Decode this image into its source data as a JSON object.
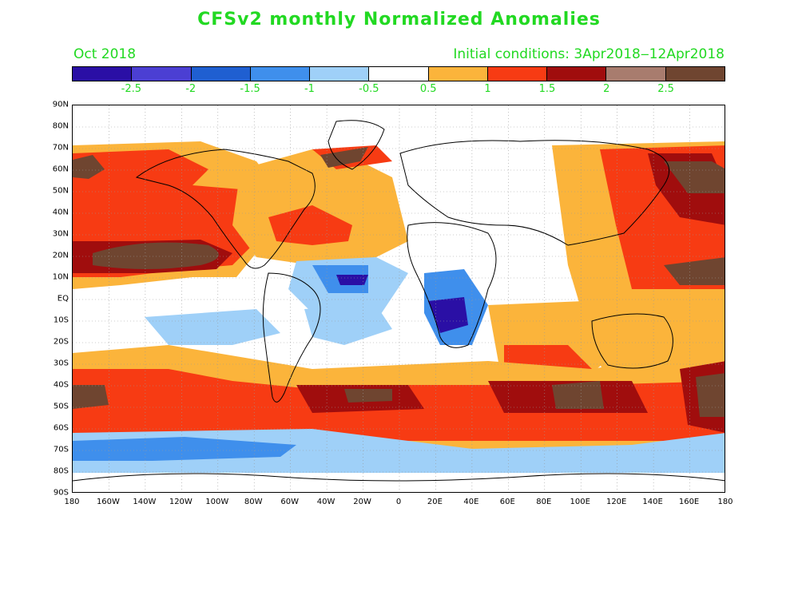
{
  "title": "CFSv2 monthly Normalized Anomalies",
  "subtitle_left": "Oct 2018",
  "subtitle_right": "Initial conditions: 3Apr2018‒12Apr2018",
  "colorbar": {
    "colors": [
      "#2a0fa5",
      "#4b3fd3",
      "#1f5fd1",
      "#3f8fec",
      "#9fd0f8",
      "#ffffff",
      "#fbb43b",
      "#f73b13",
      "#a00d0d",
      "#a87c6e",
      "#6f4530"
    ],
    "labels": [
      "-2.5",
      "-2",
      "-1.5",
      "-1",
      "-0.5",
      "0.5",
      "1",
      "1.5",
      "2",
      "2.5"
    ]
  },
  "axes": {
    "lat_labels": [
      "90N",
      "80N",
      "70N",
      "60N",
      "50N",
      "40N",
      "30N",
      "20N",
      "10N",
      "EQ",
      "10S",
      "20S",
      "30S",
      "40S",
      "50S",
      "60S",
      "70S",
      "80S",
      "90S"
    ],
    "lon_labels": [
      "180",
      "160W",
      "140W",
      "120W",
      "100W",
      "80W",
      "60W",
      "40W",
      "20W",
      "0",
      "20E",
      "40E",
      "60E",
      "80E",
      "100E",
      "120E",
      "140E",
      "160E",
      "180"
    ]
  },
  "anomaly_colors": {
    "strong_cold": "#2a0fa5",
    "cold": "#3f8fec",
    "light_cold": "#9fd0f8",
    "warm": "#fbb43b",
    "hot": "#f73b13",
    "very_hot": "#a00d0d",
    "extreme": "#6f4530"
  }
}
